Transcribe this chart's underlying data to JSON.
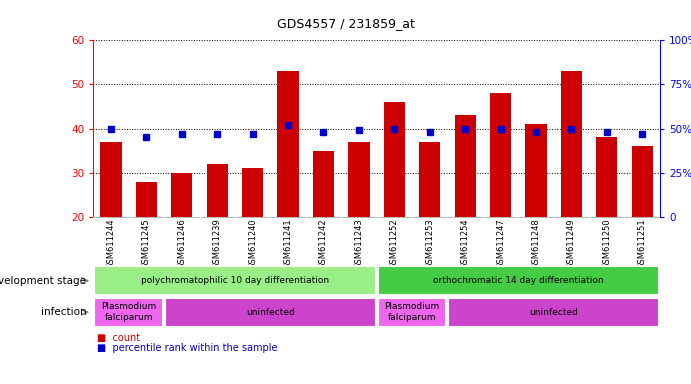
{
  "title": "GDS4557 / 231859_at",
  "samples": [
    "GSM611244",
    "GSM611245",
    "GSM611246",
    "GSM611239",
    "GSM611240",
    "GSM611241",
    "GSM611242",
    "GSM611243",
    "GSM611252",
    "GSM611253",
    "GSM611254",
    "GSM611247",
    "GSM611248",
    "GSM611249",
    "GSM611250",
    "GSM611251"
  ],
  "counts": [
    37,
    28,
    30,
    32,
    31,
    53,
    35,
    37,
    46,
    37,
    43,
    48,
    41,
    53,
    38,
    36
  ],
  "percentiles": [
    50,
    45,
    47,
    47,
    47,
    52,
    48,
    49,
    50,
    48,
    50,
    50,
    48,
    50,
    48,
    47
  ],
  "ylim_left": [
    20,
    60
  ],
  "ylim_right": [
    0,
    100
  ],
  "yticks_left": [
    20,
    30,
    40,
    50,
    60
  ],
  "yticks_right": [
    0,
    25,
    50,
    75,
    100
  ],
  "ytick_labels_right": [
    "0",
    "25%",
    "50%",
    "75%",
    "100%"
  ],
  "bar_color": "#cc0000",
  "marker_color": "#0000cc",
  "bg_color": "#ffffff",
  "plot_bg": "#ffffff",
  "tick_label_area_color": "#cccccc",
  "dev_stage_groups": [
    {
      "label": "polychromatophilic 10 day differentiation",
      "start": 0,
      "end": 7,
      "color": "#99ee88"
    },
    {
      "label": "orthochromatic 14 day differentiation",
      "start": 8,
      "end": 15,
      "color": "#44cc44"
    }
  ],
  "infection_groups": [
    {
      "label": "Plasmodium\nfalciparum",
      "start": 0,
      "end": 1,
      "color": "#ee66ee"
    },
    {
      "label": "uninfected",
      "start": 2,
      "end": 7,
      "color": "#cc44cc"
    },
    {
      "label": "Plasmodium\nfalciparum",
      "start": 8,
      "end": 9,
      "color": "#ee66ee"
    },
    {
      "label": "uninfected",
      "start": 10,
      "end": 15,
      "color": "#cc44cc"
    }
  ],
  "dev_stage_label": "development stage",
  "infection_label": "infection"
}
